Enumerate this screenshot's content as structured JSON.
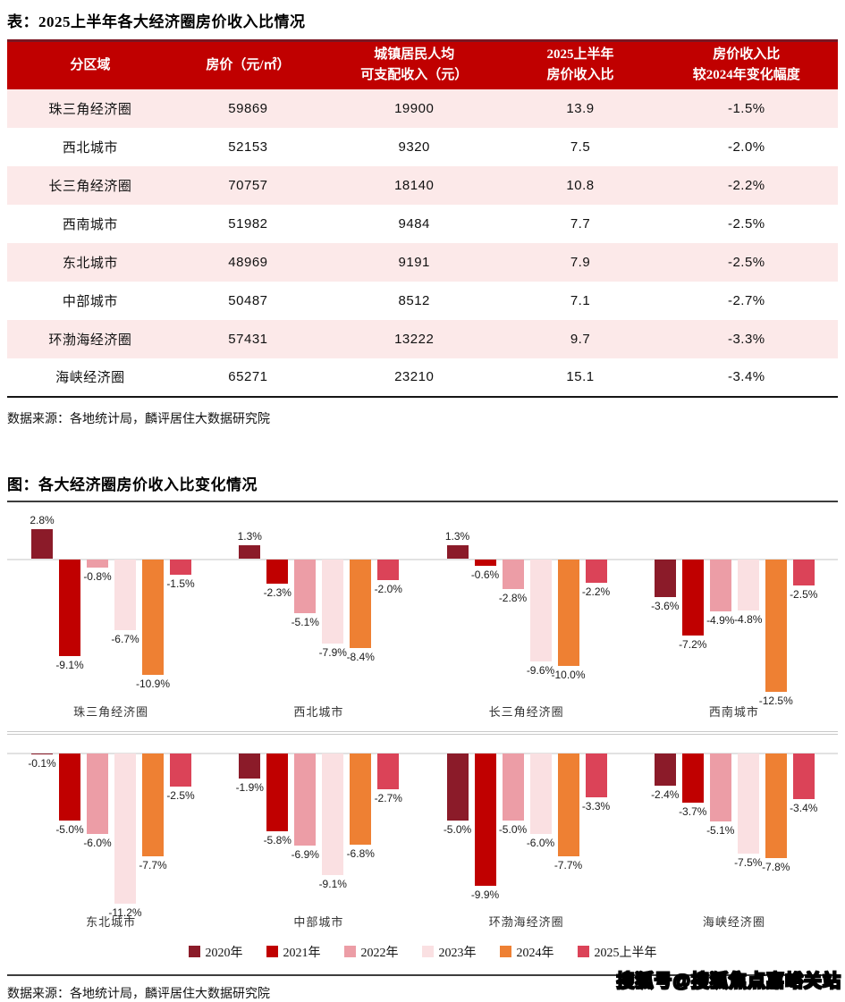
{
  "table_section": {
    "title": "表：2025上半年各大经济圈房价收入比情况",
    "columns": [
      "分区域",
      "房价（元/㎡）",
      "城镇居民人均\n可支配收入（元）",
      "2025上半年\n房价收入比",
      "房价收入比\n较2024年变化幅度"
    ],
    "rows": [
      [
        "珠三角经济圈",
        "59869",
        "19900",
        "13.9",
        "-1.5%"
      ],
      [
        "西北城市",
        "52153",
        "9320",
        "7.5",
        "-2.0%"
      ],
      [
        "长三角经济圈",
        "70757",
        "18140",
        "10.8",
        "-2.2%"
      ],
      [
        "西南城市",
        "51982",
        "9484",
        "7.7",
        "-2.5%"
      ],
      [
        "东北城市",
        "48969",
        "9191",
        "7.9",
        "-2.5%"
      ],
      [
        "中部城市",
        "50487",
        "8512",
        "7.1",
        "-2.7%"
      ],
      [
        "环渤海经济圈",
        "57431",
        "13222",
        "9.7",
        "-3.3%"
      ],
      [
        "海峡经济圈",
        "65271",
        "23210",
        "15.1",
        "-3.4%"
      ]
    ],
    "source": "数据来源：各地统计局，麟评居住大数据研究院"
  },
  "chart_section": {
    "title": "图：各大经济圈房价收入比变化情况",
    "source": "数据来源：各地统计局，麟评居住大数据研究院",
    "watermark": "搜狐号@搜狐焦点嘉峪关站"
  },
  "chart_data": {
    "type": "bar",
    "title": "各大经济圈房价收入比变化情况",
    "unit": "%",
    "grid": false,
    "legend_position": "bottom",
    "series_names": [
      "2020年",
      "2021年",
      "2022年",
      "2023年",
      "2024年",
      "2025上半年"
    ],
    "series_colors": [
      "#8B1B29",
      "#C00000",
      "#EC9DA6",
      "#FAE0E2",
      "#EE8033",
      "#DB4358"
    ],
    "panels": [
      {
        "ylim": [
          -13,
          3.5
        ],
        "groups": [
          {
            "name": "珠三角经济圈",
            "values": [
              2.8,
              -9.1,
              -0.8,
              -6.7,
              -10.9,
              -1.5
            ]
          },
          {
            "name": "西北城市",
            "values": [
              1.3,
              -2.3,
              -5.1,
              -7.9,
              -8.4,
              -2.0
            ]
          },
          {
            "name": "长三角经济圈",
            "values": [
              1.3,
              -0.6,
              -2.8,
              -9.6,
              -10.0,
              -2.2
            ]
          },
          {
            "name": "西南城市",
            "values": [
              -3.6,
              -7.2,
              -4.9,
              -4.8,
              -12.5,
              -2.5
            ]
          }
        ]
      },
      {
        "ylim": [
          -12,
          0.5
        ],
        "groups": [
          {
            "name": "东北城市",
            "values": [
              -0.1,
              -5.0,
              -6.0,
              -11.2,
              -7.7,
              -2.5
            ]
          },
          {
            "name": "中部城市",
            "values": [
              -1.9,
              -5.8,
              -6.9,
              -9.1,
              -6.8,
              -2.7
            ]
          },
          {
            "name": "环渤海经济圈",
            "values": [
              -5.0,
              -9.9,
              -5.0,
              -6.0,
              -7.7,
              -3.3
            ]
          },
          {
            "name": "海峡经济圈",
            "values": [
              -2.4,
              -3.7,
              -5.1,
              -7.5,
              -7.8,
              -3.4
            ]
          }
        ]
      }
    ]
  },
  "colors": {
    "table_header_bg": "#C00000",
    "table_row_alt_bg": "#FCE9E9",
    "header_top_border": "#7A1622",
    "zero_line": "#E2E2E2"
  }
}
